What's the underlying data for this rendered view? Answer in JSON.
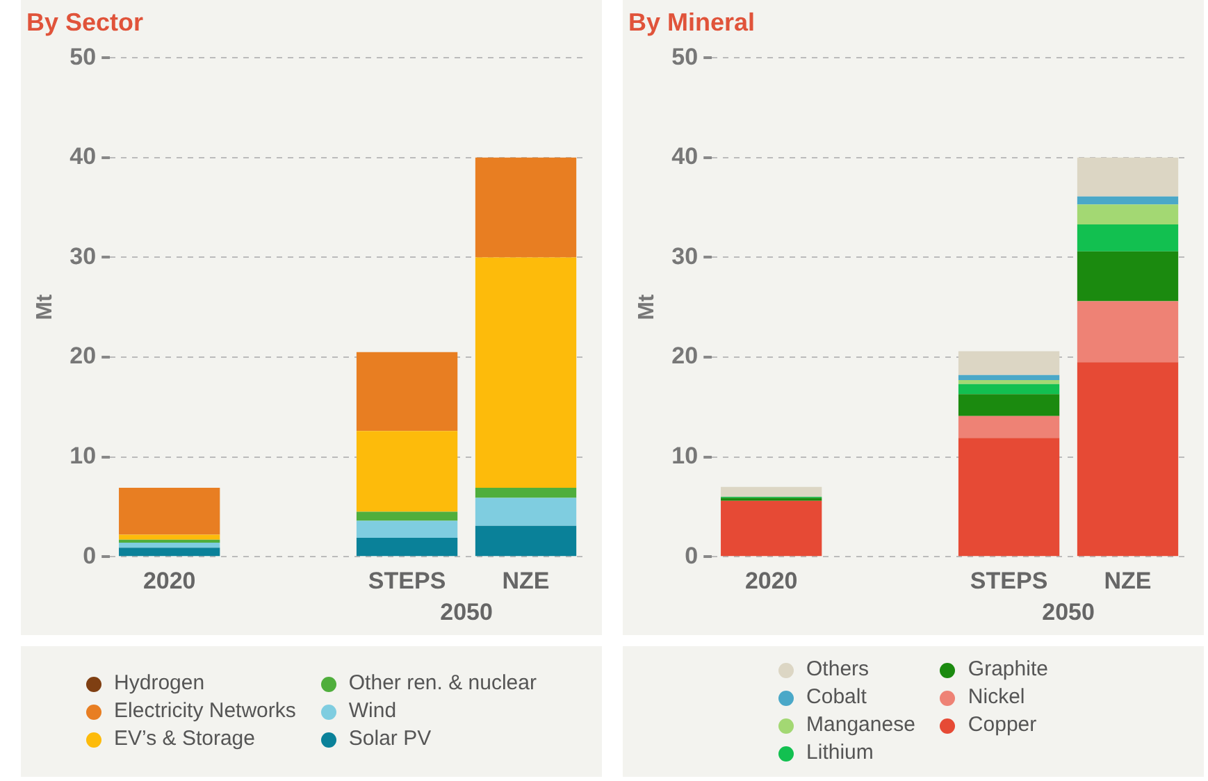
{
  "chart_data": [
    {
      "type": "bar",
      "stacked": true,
      "title": "By Sector",
      "ylabel": "Mt",
      "categories": [
        "2020",
        null,
        "STEPS",
        "NZE"
      ],
      "ylim": [
        0,
        50
      ],
      "yticks": [
        0,
        10,
        20,
        30,
        40,
        50
      ],
      "grid": "y",
      "legend": "bottom",
      "annotations": [
        "2050"
      ],
      "series": [
        {
          "name": "Solar PV",
          "color": "#0a8199",
          "values": [
            0.9,
            null,
            1.9,
            3.1
          ]
        },
        {
          "name": "Wind",
          "color": "#7fcde0",
          "values": [
            0.5,
            null,
            1.7,
            2.8
          ]
        },
        {
          "name": "Other ren. & nuclear",
          "color": "#4fae3c",
          "values": [
            0.3,
            null,
            0.9,
            1.0
          ]
        },
        {
          "name": "EV’s & Storage",
          "color": "#fdbb0b",
          "values": [
            0.5,
            null,
            8.1,
            23.1
          ]
        },
        {
          "name": "Electricity Networks",
          "color": "#e87e22",
          "values": [
            4.7,
            null,
            7.9,
            10.0
          ]
        },
        {
          "name": "Hydrogen",
          "color": "#7f3f12",
          "values": [
            0,
            null,
            0,
            0
          ]
        }
      ]
    },
    {
      "type": "bar",
      "stacked": true,
      "title": "By Mineral",
      "ylabel": "Mt",
      "categories": [
        "2020",
        null,
        "STEPS",
        "NZE"
      ],
      "ylim": [
        0,
        50
      ],
      "yticks": [
        0,
        10,
        20,
        30,
        40,
        50
      ],
      "grid": "y",
      "legend": "bottom",
      "annotations": [
        "2050"
      ],
      "series": [
        {
          "name": "Copper",
          "color": "#e64a35",
          "values": [
            5.6,
            null,
            11.9,
            19.5
          ]
        },
        {
          "name": "Nickel",
          "color": "#ee8275",
          "values": [
            0,
            null,
            2.2,
            6.1
          ]
        },
        {
          "name": "Graphite",
          "color": "#1b8a0f",
          "values": [
            0.3,
            null,
            2.2,
            5.0
          ]
        },
        {
          "name": "Lithium",
          "color": "#12c050",
          "values": [
            0.1,
            null,
            1.0,
            2.7
          ]
        },
        {
          "name": "Manganese",
          "color": "#a3d873",
          "values": [
            0,
            null,
            0.4,
            2.0
          ]
        },
        {
          "name": "Cobalt",
          "color": "#4aa8c8",
          "values": [
            0,
            null,
            0.5,
            0.8
          ]
        },
        {
          "name": "Others",
          "color": "#dcd6c4",
          "values": [
            1.0,
            null,
            2.4,
            3.9
          ]
        }
      ]
    }
  ]
}
